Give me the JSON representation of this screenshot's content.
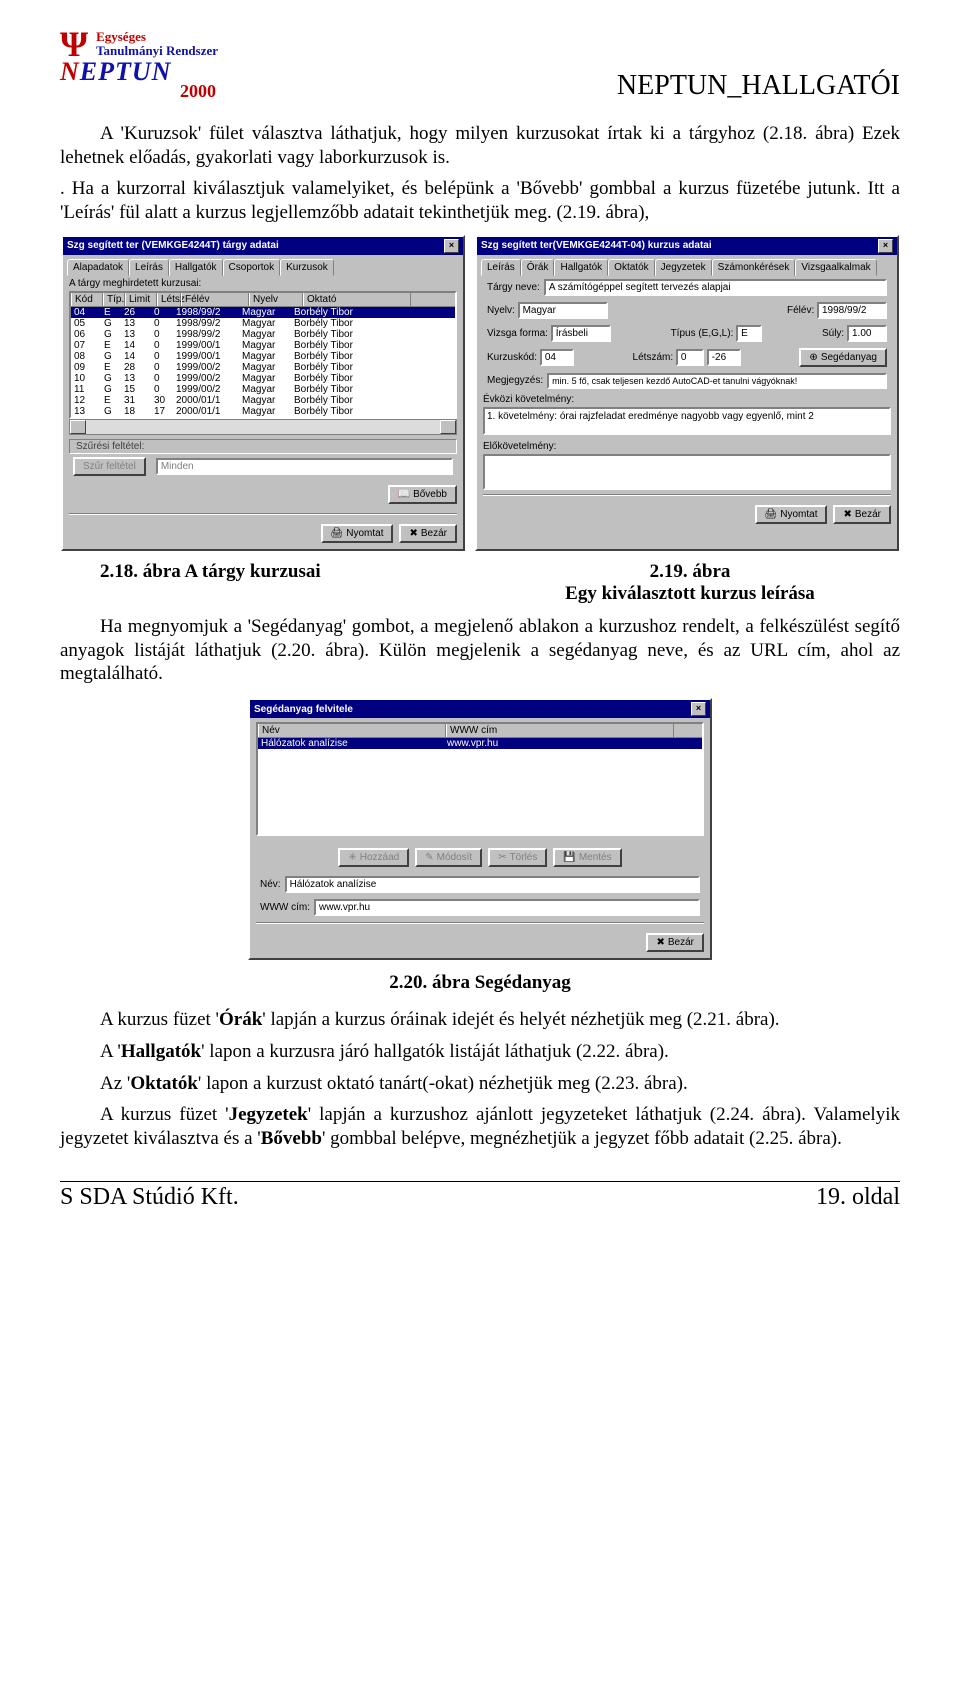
{
  "header": {
    "logo_line1": "Egységes",
    "logo_line2": "Tanulmányi Rendszer",
    "logo_name": "NEPTUN",
    "logo_year": "2000",
    "doc_title": "NEPTUN_HALLGATÓI"
  },
  "para1": "A 'Kuruzsok' fület választva láthatjuk, hogy milyen kurzusokat írtak ki a tárgyhoz (2.18. ábra) Ezek lehetnek előadás, gyakorlati vagy laborkurzusok is.",
  "para2": ". Ha a kurzorral kiválasztjuk valamelyiket, és belépünk a 'Bővebb' gombbal a kurzus füzetébe jutunk. Itt a 'Leírás' fül alatt a kurzus legjellemzőbb adatait tekinthetjük meg. (2.19. ábra),",
  "caption_left": "2.18. ábra A tárgy kurzusai",
  "caption_right_l1": "2.19. ábra",
  "caption_right_l2": "Egy kiválasztott kurzus leírása",
  "para3": "Ha megnyomjuk a 'Segédanyag' gombot, a megjelenő ablakon a kurzushoz rendelt, a felkészülést segítő anyagok listáját láthatjuk (2.20. ábra). Külön megjelenik a segédanyag neve, és az URL cím, ahol az megtalálható.",
  "caption_center": "2.20. ábra Segédanyag",
  "para4": "A kurzus füzet 'Órák' lapján a kurzus óráinak idejét és helyét nézhetjük meg (2.21. ábra).",
  "para5": "A 'Hallgatók' lapon a kurzusra járó hallgatók listáját láthatjuk (2.22. ábra).",
  "para6": "Az 'Oktatók' lapon a kurzust oktató tanárt(-okat) nézhetjük meg (2.23. ábra).",
  "para7": "A kurzus füzet 'Jegyzetek' lapján a kurzushoz ajánlott jegyzeteket láthatjuk (2.24. ábra). Valamelyik jegyzetet kiválasztva és a 'Bővebb' gombbal belépve, megnézhetjük a jegyzet főbb adatait (2.25. ábra).",
  "footer_left": "S SDA Stúdió Kft.",
  "footer_right": "19. oldal",
  "dlg1": {
    "title": "Szg segített ter (VEMKGE4244T) tárgy adatai",
    "tabs": [
      "Alapadatok",
      "Leírás",
      "Hallgatók",
      "Csoportok",
      "Kurzusok"
    ],
    "subhead": "A tárgy meghirdetett kurzusai:",
    "cols": [
      "Kód",
      "Típ.",
      "Limit",
      "Létsz",
      "Félév",
      "Nyelv",
      "Oktató"
    ],
    "rows": [
      [
        "04",
        "E",
        "26",
        "0",
        "1998/99/2",
        "Magyar",
        "Borbély Tibor"
      ],
      [
        "05",
        "G",
        "13",
        "0",
        "1998/99/2",
        "Magyar",
        "Borbély Tibor"
      ],
      [
        "06",
        "G",
        "13",
        "0",
        "1998/99/2",
        "Magyar",
        "Borbély Tibor"
      ],
      [
        "07",
        "E",
        "14",
        "0",
        "1999/00/1",
        "Magyar",
        "Borbély Tibor"
      ],
      [
        "08",
        "G",
        "14",
        "0",
        "1999/00/1",
        "Magyar",
        "Borbély Tibor"
      ],
      [
        "09",
        "E",
        "28",
        "0",
        "1999/00/2",
        "Magyar",
        "Borbély Tibor"
      ],
      [
        "10",
        "G",
        "13",
        "0",
        "1999/00/2",
        "Magyar",
        "Borbély Tibor"
      ],
      [
        "11",
        "G",
        "15",
        "0",
        "1999/00/2",
        "Magyar",
        "Borbély Tibor"
      ],
      [
        "12",
        "E",
        "31",
        "30",
        "2000/01/1",
        "Magyar",
        "Borbély Tibor"
      ],
      [
        "13",
        "G",
        "18",
        "17",
        "2000/01/1",
        "Magyar",
        "Borbély Tibor"
      ]
    ],
    "filter_label": "Szűrési feltétel:",
    "filter_btn": "Szűr feltétel",
    "filter_val": "Minden",
    "btn_bovebb": "Bővebb",
    "btn_nyomtat": "Nyomtat",
    "btn_bezar": "Bezár"
  },
  "dlg2": {
    "title": "Szg segített ter(VEMKGE4244T-04) kurzus adatai",
    "tabs": [
      "Leírás",
      "Órák",
      "Hallgatók",
      "Oktatók",
      "Jegyzetek",
      "Számonkérések",
      "Vizsgaalkalmak"
    ],
    "targy_lbl": "Tárgy neve:",
    "targy_val": "A számítógéppel segített tervezés alapjai",
    "nyelv_lbl": "Nyelv:",
    "nyelv_val": "Magyar",
    "felev_lbl": "Félév:",
    "felev_val": "1998/99/2",
    "vizsga_lbl": "Vizsga forma:",
    "vizsga_val": "Írásbeli",
    "tipus_lbl": "Típus (E,G,L):",
    "tipus_val": "E",
    "suly_lbl": "Súly:",
    "suly_val": "1.00",
    "kod_lbl": "Kurzuskód:",
    "kod_val": "04",
    "letszam_lbl": "Létszám:",
    "letszam_val1": "0",
    "letszam_val2": "-26",
    "seged_btn": "Segédanyag",
    "megj_lbl": "Megjegyzés:",
    "megj_val": "min. 5 fő, csak teljesen kezdő AutoCAD-et tanulni vágyóknak!",
    "evkozi_lbl": "Évközi követelmény:",
    "evkozi_val": "1. követelmény: órai rajzfeladat eredménye nagyobb vagy egyenlő, mint 2",
    "elokov_lbl": "Előkövetelmény:",
    "btn_nyomtat": "Nyomtat",
    "btn_bezar": "Bezár"
  },
  "dlg3": {
    "title": "Segédanyag felvitele",
    "col1": "Név",
    "col2": "WWW cím",
    "row_name": "Hálózatok analízise",
    "row_url": "www.vpr.hu",
    "btn_hozzaad": "Hozzáad",
    "btn_modosit": "Módosít",
    "btn_torles": "Törlés",
    "btn_mentes": "Mentés",
    "nev_lbl": "Név:",
    "nev_val": "Hálózatok analízise",
    "www_lbl": "WWW cím:",
    "www_val": "www.vpr.hu",
    "btn_bezar": "Bezár"
  }
}
